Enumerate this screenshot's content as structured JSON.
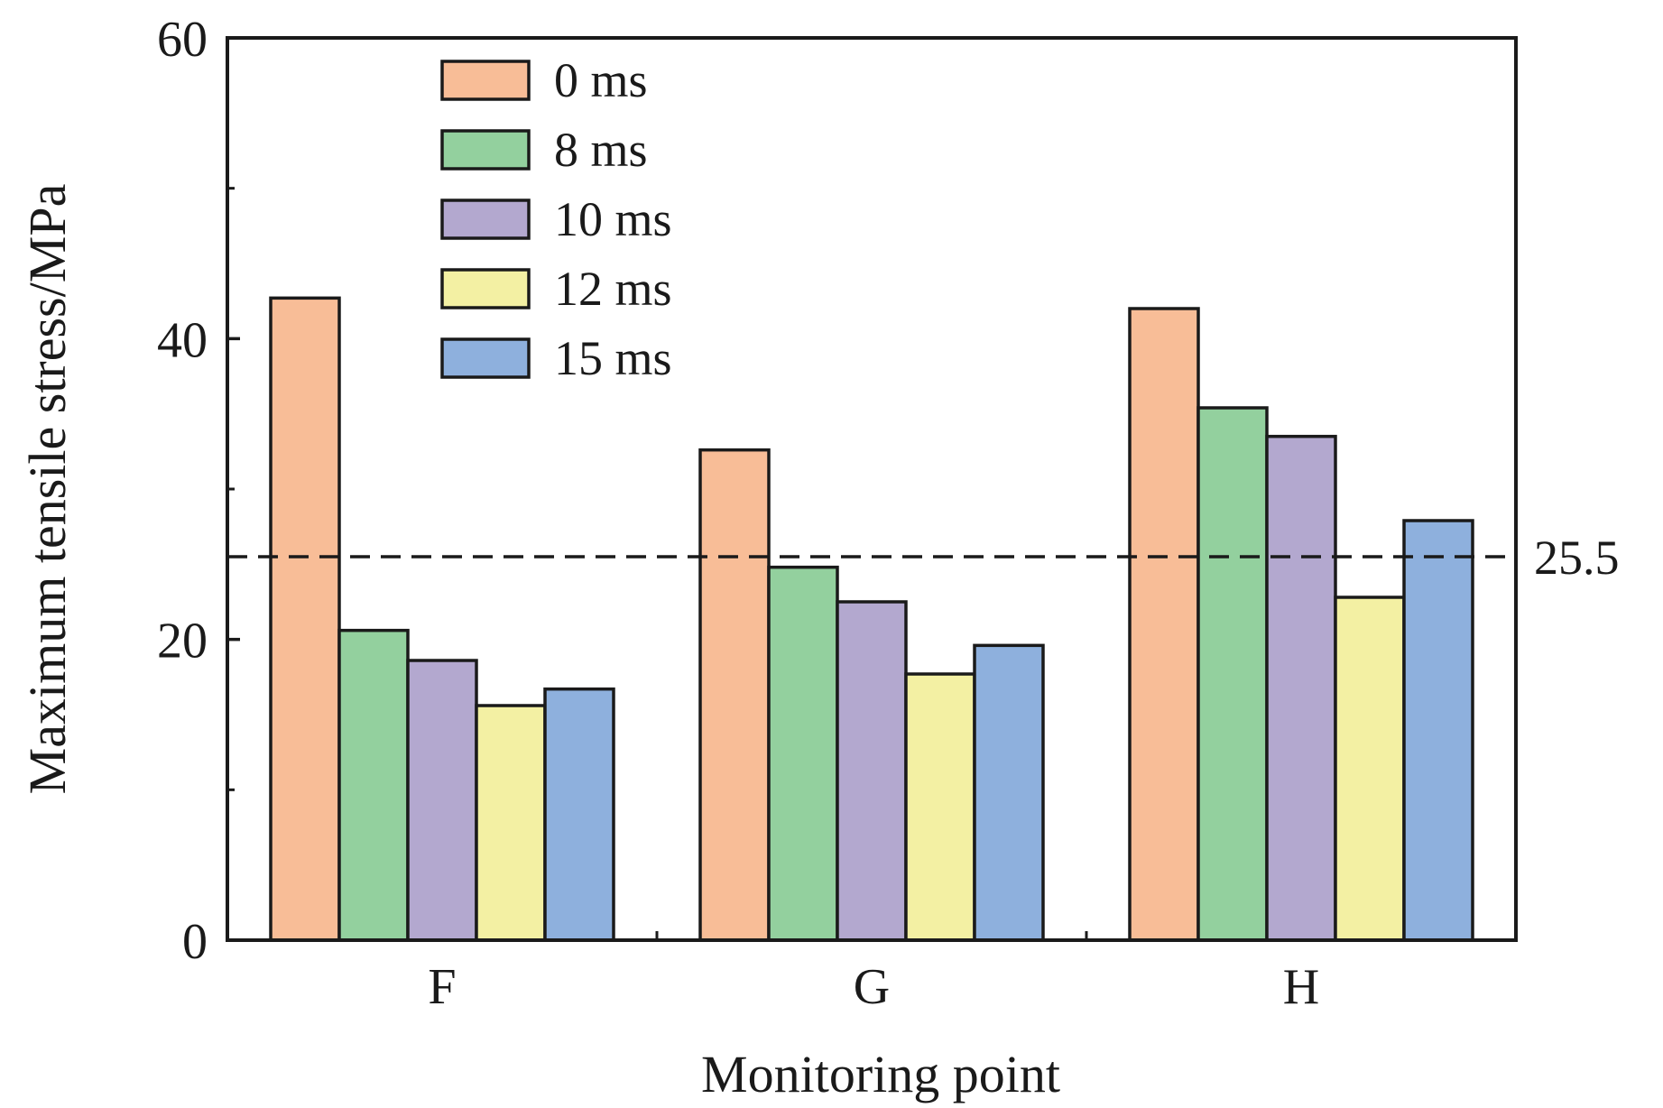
{
  "chart_data": {
    "type": "bar",
    "title": "",
    "xlabel": "Monitoring point",
    "ylabel": "Maximum tensile stress/MPa",
    "categories": [
      "F",
      "G",
      "H"
    ],
    "ylim": [
      0,
      60
    ],
    "yticks": [
      0,
      20,
      40,
      60
    ],
    "y_minor_ticks": [
      10,
      30,
      50
    ],
    "y_tick_labels": [
      "0",
      "20",
      "40",
      "60"
    ],
    "grid": false,
    "legend_position": "top-left",
    "series": [
      {
        "name": "0 ms",
        "color": "#f8bd97",
        "values": [
          42.7,
          32.6,
          42.0
        ]
      },
      {
        "name": "8 ms",
        "color": "#93d09e",
        "values": [
          20.6,
          24.8,
          35.4
        ]
      },
      {
        "name": "10 ms",
        "color": "#b3a8cf",
        "values": [
          18.6,
          22.5,
          33.5
        ]
      },
      {
        "name": "12 ms",
        "color": "#f3f0a3",
        "values": [
          15.6,
          17.7,
          22.8
        ]
      },
      {
        "name": "15 ms",
        "color": "#8eb0dd",
        "values": [
          16.7,
          19.6,
          27.9
        ]
      }
    ],
    "reference_line": {
      "value": 25.5,
      "label": "25.5",
      "style": "dashed"
    }
  }
}
